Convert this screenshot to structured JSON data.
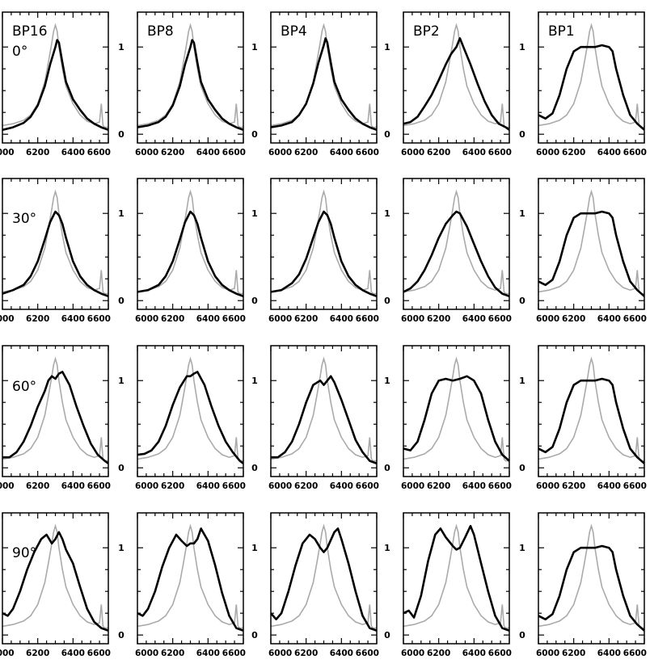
{
  "chart_data": {
    "type": "line",
    "xlim": [
      6000,
      6600
    ],
    "ylim": [
      -0.1,
      1.4
    ],
    "x_ticks": [
      "6000",
      "6200",
      "6400",
      "6600"
    ],
    "y_ticks": [
      "0",
      "1"
    ],
    "grid": false,
    "columns": [
      "BP16",
      "BP8",
      "BP4",
      "BP2",
      "BP1"
    ],
    "rows": [
      "0°",
      "30°",
      "60°",
      "90°"
    ],
    "colors": {
      "reference": "#aaaaaa",
      "model": "#000000"
    },
    "reference_series": {
      "x": [
        6000,
        6060,
        6120,
        6160,
        6200,
        6240,
        6260,
        6280,
        6290,
        6300,
        6310,
        6320,
        6340,
        6360,
        6400,
        6440,
        6480,
        6520,
        6550,
        6560,
        6570,
        6580,
        6600
      ],
      "y": [
        0.1,
        0.12,
        0.16,
        0.22,
        0.35,
        0.6,
        0.82,
        1.05,
        1.18,
        1.25,
        1.18,
        1.0,
        0.75,
        0.55,
        0.35,
        0.22,
        0.15,
        0.12,
        0.14,
        0.35,
        0.1,
        0.08,
        0.08
      ]
    },
    "model_series": [
      {
        "x": [
          6000,
          6060,
          6120,
          6160,
          6200,
          6240,
          6270,
          6300,
          6310,
          6320,
          6340,
          6360,
          6400,
          6440,
          6480,
          6520,
          6560,
          6600
        ],
        "y": [
          0.05,
          0.08,
          0.13,
          0.2,
          0.33,
          0.55,
          0.8,
          1.0,
          1.08,
          1.05,
          0.82,
          0.6,
          0.4,
          0.28,
          0.18,
          0.12,
          0.08,
          0.05
        ]
      },
      {
        "x": [
          6000,
          6060,
          6120,
          6160,
          6200,
          6240,
          6270,
          6300,
          6310,
          6320,
          6340,
          6360,
          6400,
          6440,
          6480,
          6520,
          6560,
          6600
        ],
        "y": [
          0.08,
          0.1,
          0.14,
          0.2,
          0.33,
          0.55,
          0.8,
          1.0,
          1.08,
          1.05,
          0.82,
          0.6,
          0.4,
          0.28,
          0.18,
          0.12,
          0.08,
          0.05
        ]
      },
      {
        "x": [
          6000,
          6060,
          6120,
          6160,
          6200,
          6240,
          6270,
          6300,
          6310,
          6320,
          6340,
          6360,
          6400,
          6440,
          6480,
          6520,
          6560,
          6600
        ],
        "y": [
          0.08,
          0.1,
          0.14,
          0.22,
          0.35,
          0.58,
          0.82,
          1.02,
          1.1,
          1.05,
          0.82,
          0.6,
          0.4,
          0.28,
          0.18,
          0.12,
          0.08,
          0.05
        ]
      },
      {
        "x": [
          6000,
          6040,
          6080,
          6120,
          6160,
          6200,
          6240,
          6270,
          6300,
          6320,
          6340,
          6380,
          6420,
          6460,
          6500,
          6540,
          6580,
          6600
        ],
        "y": [
          0.12,
          0.14,
          0.2,
          0.32,
          0.45,
          0.62,
          0.8,
          0.92,
          1.0,
          1.1,
          1.0,
          0.8,
          0.58,
          0.38,
          0.22,
          0.12,
          0.08,
          0.05
        ]
      },
      {
        "x": [
          6000,
          6040,
          6080,
          6120,
          6160,
          6200,
          6240,
          6280,
          6320,
          6360,
          6400,
          6420,
          6440,
          6480,
          6520,
          6560,
          6600
        ],
        "y": [
          0.22,
          0.18,
          0.24,
          0.45,
          0.75,
          0.95,
          1.0,
          1.0,
          1.0,
          1.02,
          1.0,
          0.95,
          0.75,
          0.45,
          0.22,
          0.12,
          0.05
        ]
      },
      {
        "x": [
          6000,
          6060,
          6120,
          6160,
          6200,
          6240,
          6270,
          6300,
          6320,
          6340,
          6360,
          6400,
          6440,
          6480,
          6520,
          6560,
          6600
        ],
        "y": [
          0.08,
          0.12,
          0.18,
          0.28,
          0.45,
          0.7,
          0.9,
          1.02,
          0.98,
          0.88,
          0.72,
          0.45,
          0.28,
          0.18,
          0.12,
          0.08,
          0.05
        ]
      },
      {
        "x": [
          6000,
          6060,
          6120,
          6160,
          6200,
          6240,
          6270,
          6300,
          6320,
          6340,
          6360,
          6400,
          6440,
          6480,
          6520,
          6560,
          6600
        ],
        "y": [
          0.1,
          0.12,
          0.18,
          0.28,
          0.45,
          0.7,
          0.9,
          1.02,
          0.98,
          0.88,
          0.72,
          0.45,
          0.28,
          0.18,
          0.12,
          0.08,
          0.05
        ]
      },
      {
        "x": [
          6000,
          6060,
          6120,
          6160,
          6200,
          6240,
          6270,
          6300,
          6320,
          6340,
          6360,
          6400,
          6440,
          6480,
          6520,
          6560,
          6600
        ],
        "y": [
          0.1,
          0.12,
          0.2,
          0.3,
          0.48,
          0.72,
          0.9,
          1.02,
          0.98,
          0.88,
          0.72,
          0.45,
          0.28,
          0.18,
          0.12,
          0.08,
          0.05
        ]
      },
      {
        "x": [
          6000,
          6040,
          6080,
          6120,
          6160,
          6200,
          6240,
          6280,
          6300,
          6320,
          6360,
          6400,
          6440,
          6480,
          6520,
          6560,
          6600
        ],
        "y": [
          0.1,
          0.14,
          0.22,
          0.35,
          0.52,
          0.72,
          0.88,
          0.98,
          1.02,
          1.0,
          0.85,
          0.65,
          0.45,
          0.28,
          0.15,
          0.08,
          0.05
        ]
      },
      {
        "x": [
          6000,
          6040,
          6080,
          6120,
          6160,
          6200,
          6240,
          6280,
          6320,
          6360,
          6400,
          6420,
          6440,
          6480,
          6520,
          6560,
          6600
        ],
        "y": [
          0.22,
          0.18,
          0.24,
          0.45,
          0.75,
          0.95,
          1.0,
          1.0,
          1.0,
          1.02,
          1.0,
          0.95,
          0.75,
          0.45,
          0.22,
          0.12,
          0.05
        ]
      },
      {
        "x": [
          6000,
          6040,
          6080,
          6120,
          6160,
          6200,
          6240,
          6260,
          6280,
          6300,
          6320,
          6340,
          6380,
          6420,
          6460,
          6500,
          6540,
          6580,
          6600
        ],
        "y": [
          0.12,
          0.12,
          0.18,
          0.3,
          0.48,
          0.7,
          0.88,
          1.0,
          1.05,
          1.02,
          1.08,
          1.1,
          0.95,
          0.7,
          0.48,
          0.28,
          0.15,
          0.08,
          0.05
        ]
      },
      {
        "x": [
          6000,
          6040,
          6080,
          6120,
          6160,
          6200,
          6240,
          6280,
          6300,
          6320,
          6340,
          6380,
          6420,
          6460,
          6500,
          6540,
          6580,
          6600
        ],
        "y": [
          0.15,
          0.16,
          0.2,
          0.3,
          0.48,
          0.72,
          0.92,
          1.05,
          1.05,
          1.08,
          1.1,
          0.95,
          0.7,
          0.48,
          0.3,
          0.18,
          0.08,
          0.05
        ]
      },
      {
        "x": [
          6000,
          6040,
          6080,
          6120,
          6160,
          6200,
          6240,
          6280,
          6300,
          6320,
          6340,
          6360,
          6400,
          6440,
          6480,
          6520,
          6560,
          6600
        ],
        "y": [
          0.12,
          0.12,
          0.18,
          0.3,
          0.5,
          0.75,
          0.95,
          1.0,
          0.95,
          1.0,
          1.05,
          0.98,
          0.78,
          0.55,
          0.32,
          0.18,
          0.08,
          0.05
        ]
      },
      {
        "x": [
          6000,
          6040,
          6080,
          6120,
          6160,
          6200,
          6240,
          6280,
          6320,
          6360,
          6400,
          6440,
          6480,
          6520,
          6560,
          6600
        ],
        "y": [
          0.22,
          0.2,
          0.3,
          0.55,
          0.85,
          1.0,
          1.02,
          1.0,
          1.02,
          1.05,
          1.0,
          0.85,
          0.55,
          0.3,
          0.15,
          0.08
        ]
      },
      {
        "x": [
          6000,
          6040,
          6080,
          6120,
          6160,
          6200,
          6240,
          6280,
          6320,
          6360,
          6400,
          6420,
          6440,
          6480,
          6520,
          6560,
          6600
        ],
        "y": [
          0.22,
          0.18,
          0.24,
          0.45,
          0.75,
          0.95,
          1.0,
          1.0,
          1.0,
          1.02,
          1.0,
          0.95,
          0.75,
          0.45,
          0.22,
          0.12,
          0.05
        ]
      },
      {
        "x": [
          6000,
          6030,
          6060,
          6100,
          6140,
          6180,
          6220,
          6250,
          6280,
          6300,
          6320,
          6340,
          6360,
          6400,
          6440,
          6480,
          6520,
          6560,
          6600
        ],
        "y": [
          0.25,
          0.22,
          0.3,
          0.5,
          0.75,
          0.95,
          1.1,
          1.15,
          1.05,
          1.1,
          1.18,
          1.1,
          0.98,
          0.82,
          0.55,
          0.3,
          0.15,
          0.08,
          0.05
        ]
      },
      {
        "x": [
          6000,
          6030,
          6060,
          6100,
          6140,
          6180,
          6220,
          6250,
          6280,
          6300,
          6320,
          6340,
          6360,
          6400,
          6440,
          6480,
          6520,
          6560,
          6600
        ],
        "y": [
          0.25,
          0.22,
          0.3,
          0.5,
          0.78,
          1.0,
          1.15,
          1.08,
          1.02,
          1.05,
          1.05,
          1.1,
          1.22,
          1.08,
          0.8,
          0.48,
          0.22,
          0.08,
          0.05
        ]
      },
      {
        "x": [
          6000,
          6030,
          6060,
          6100,
          6140,
          6180,
          6220,
          6250,
          6280,
          6300,
          6320,
          6360,
          6380,
          6400,
          6440,
          6480,
          6520,
          6560,
          6600
        ],
        "y": [
          0.25,
          0.18,
          0.25,
          0.5,
          0.8,
          1.05,
          1.15,
          1.1,
          1.0,
          0.95,
          1.0,
          1.18,
          1.22,
          1.1,
          0.82,
          0.5,
          0.22,
          0.08,
          0.05
        ]
      },
      {
        "x": [
          6000,
          6030,
          6060,
          6100,
          6140,
          6180,
          6210,
          6240,
          6280,
          6300,
          6320,
          6350,
          6380,
          6400,
          6440,
          6480,
          6520,
          6560,
          6600
        ],
        "y": [
          0.25,
          0.28,
          0.2,
          0.45,
          0.85,
          1.15,
          1.22,
          1.12,
          1.02,
          0.98,
          1.0,
          1.12,
          1.25,
          1.15,
          0.82,
          0.5,
          0.22,
          0.08,
          0.05
        ]
      },
      {
        "x": [
          6000,
          6040,
          6080,
          6120,
          6160,
          6200,
          6240,
          6280,
          6320,
          6360,
          6400,
          6420,
          6440,
          6480,
          6520,
          6560,
          6600
        ],
        "y": [
          0.22,
          0.18,
          0.24,
          0.45,
          0.75,
          0.95,
          1.0,
          1.0,
          1.0,
          1.02,
          1.0,
          0.95,
          0.75,
          0.45,
          0.22,
          0.12,
          0.05
        ]
      }
    ]
  }
}
